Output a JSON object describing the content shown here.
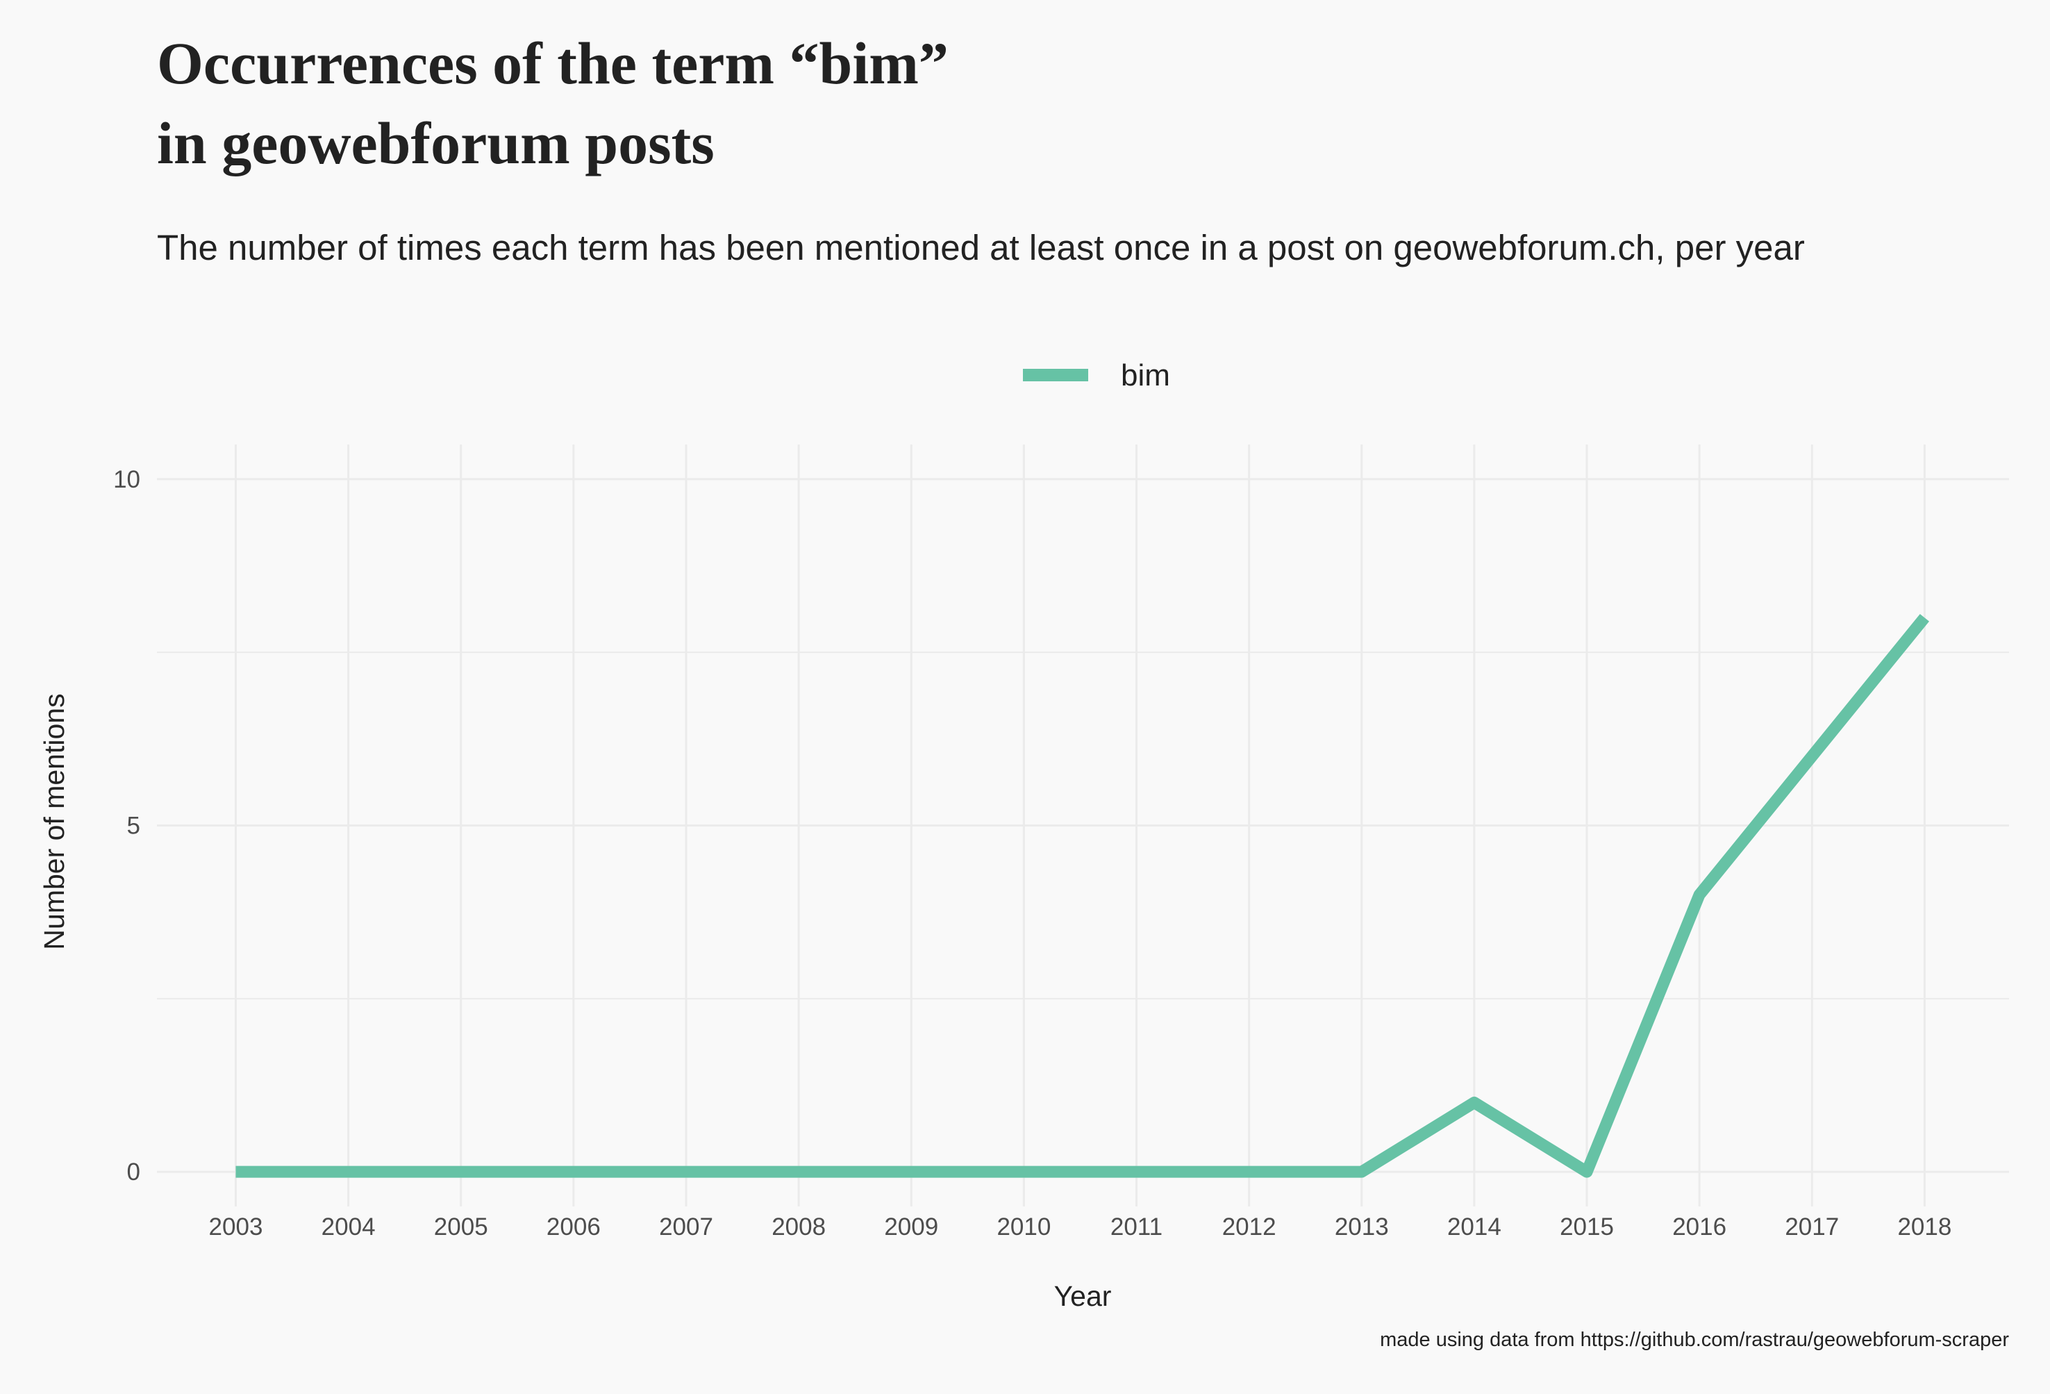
{
  "chart_data": {
    "type": "line",
    "title_lines": [
      "Occurrences of the term “bim”",
      "in geowebforum posts"
    ],
    "subtitle": "The number of times each term has been mentioned at least once in a post on geowebforum.ch, per year",
    "xlabel": "Year",
    "ylabel": "Number of mentions",
    "caption": "made using data from https://github.com/rastrau/geowebforum-scraper",
    "legend_position": "top",
    "x": [
      2003,
      2004,
      2005,
      2006,
      2007,
      2008,
      2009,
      2010,
      2011,
      2012,
      2013,
      2014,
      2015,
      2016,
      2017,
      2018
    ],
    "x_ticks": [
      "2003",
      "2004",
      "2005",
      "2006",
      "2007",
      "2008",
      "2009",
      "2010",
      "2011",
      "2012",
      "2013",
      "2014",
      "2015",
      "2016",
      "2017",
      "2018"
    ],
    "y_ticks": [
      0,
      5,
      10
    ],
    "y_minor_ticks": [
      2.5,
      7.5
    ],
    "ylim": [
      -0.5,
      10.5
    ],
    "xlim": [
      2002.3,
      2018.75
    ],
    "grid": true,
    "series": [
      {
        "name": "bim",
        "color": "#66c2a5",
        "values": [
          0,
          0,
          0,
          0,
          0,
          0,
          0,
          0,
          0,
          0,
          0,
          1,
          0,
          4,
          6,
          8
        ]
      }
    ]
  },
  "colors": {
    "background": "#f9f9f9",
    "grid": "#ebebeb",
    "text": "#222222",
    "tick_text": "#4d4d4d"
  }
}
